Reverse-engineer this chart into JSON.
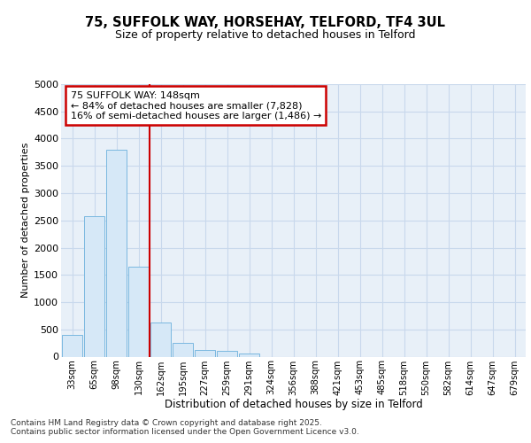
{
  "title1": "75, SUFFOLK WAY, HORSEHAY, TELFORD, TF4 3UL",
  "title2": "Size of property relative to detached houses in Telford",
  "xlabel": "Distribution of detached houses by size in Telford",
  "ylabel": "Number of detached properties",
  "categories": [
    "33sqm",
    "65sqm",
    "98sqm",
    "130sqm",
    "162sqm",
    "195sqm",
    "227sqm",
    "259sqm",
    "291sqm",
    "324sqm",
    "356sqm",
    "388sqm",
    "421sqm",
    "453sqm",
    "485sqm",
    "518sqm",
    "550sqm",
    "582sqm",
    "614sqm",
    "647sqm",
    "679sqm"
  ],
  "values": [
    400,
    2570,
    3800,
    1650,
    620,
    250,
    130,
    100,
    50,
    0,
    0,
    0,
    0,
    0,
    0,
    0,
    0,
    0,
    0,
    0,
    0
  ],
  "bar_color": "#d6e8f7",
  "bar_edge_color": "#7ab8e0",
  "grid_color": "#c8d8ec",
  "background_color": "#e8f0f8",
  "vline_color": "#cc0000",
  "annotation_text": "75 SUFFOLK WAY: 148sqm\n← 84% of detached houses are smaller (7,828)\n16% of semi-detached houses are larger (1,486) →",
  "annotation_box_color": "#cc0000",
  "footer_text": "Contains HM Land Registry data © Crown copyright and database right 2025.\nContains public sector information licensed under the Open Government Licence v3.0.",
  "ylim": [
    0,
    5000
  ],
  "yticks": [
    0,
    500,
    1000,
    1500,
    2000,
    2500,
    3000,
    3500,
    4000,
    4500,
    5000
  ]
}
